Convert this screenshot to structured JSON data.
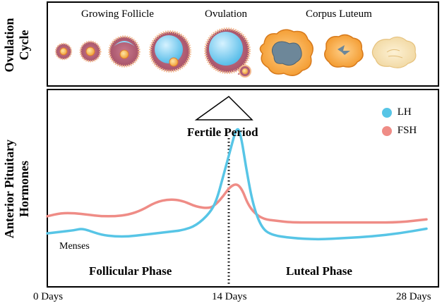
{
  "top_panel": {
    "side_label_line1": "Ovulation",
    "side_label_line2": "Cycle",
    "stages": {
      "growing": "Growing Follicle",
      "ovulation": "Ovulation",
      "luteum": "Corpus Luteum"
    }
  },
  "bottom_panel": {
    "side_label_line1": "Anterior Pituitary",
    "side_label_line2": "Hormones",
    "fertile_label": "Fertile Period",
    "menses_label": "Menses",
    "follicular_label": "Follicular Phase",
    "luteal_label": "Luteal Phase"
  },
  "legend": [
    {
      "name": "LH",
      "color": "#57c5e6"
    },
    {
      "name": "FSH",
      "color": "#ef8c86"
    }
  ],
  "x_axis": {
    "ticks": [
      "0 Days",
      "14 Days",
      "28 Days"
    ]
  },
  "chart_data": {
    "type": "line",
    "x_unit": "days",
    "xlim": [
      0,
      28
    ],
    "ovulation_day": 14,
    "series": [
      {
        "name": "LH",
        "color": "#57c5e6",
        "x": [
          0,
          1,
          2,
          2.5,
          3,
          4,
          5,
          6,
          7,
          8,
          9,
          10,
          11,
          12,
          12.5,
          13,
          13.5,
          14,
          14.3,
          14.7,
          15.2,
          15.8,
          16.5,
          18,
          20,
          22,
          24,
          26,
          28
        ],
        "y": [
          0.09,
          0.1,
          0.11,
          0.12,
          0.11,
          0.08,
          0.07,
          0.07,
          0.08,
          0.09,
          0.1,
          0.11,
          0.14,
          0.22,
          0.3,
          0.46,
          0.62,
          0.78,
          0.72,
          0.5,
          0.27,
          0.13,
          0.08,
          0.06,
          0.05,
          0.06,
          0.07,
          0.09,
          0.12
        ]
      },
      {
        "name": "FSH",
        "color": "#ef8c86",
        "x": [
          0,
          1,
          2,
          3,
          4,
          5,
          6,
          7,
          8,
          9,
          10,
          11,
          12,
          12.5,
          13,
          13.5,
          14,
          14.4,
          14.8,
          15.3,
          16,
          17,
          18,
          20,
          22,
          24,
          26,
          28
        ],
        "y": [
          0.2,
          0.22,
          0.22,
          0.21,
          0.2,
          0.2,
          0.21,
          0.24,
          0.29,
          0.31,
          0.3,
          0.26,
          0.25,
          0.28,
          0.33,
          0.39,
          0.41,
          0.37,
          0.28,
          0.22,
          0.18,
          0.17,
          0.16,
          0.16,
          0.16,
          0.16,
          0.16,
          0.18
        ]
      }
    ]
  }
}
